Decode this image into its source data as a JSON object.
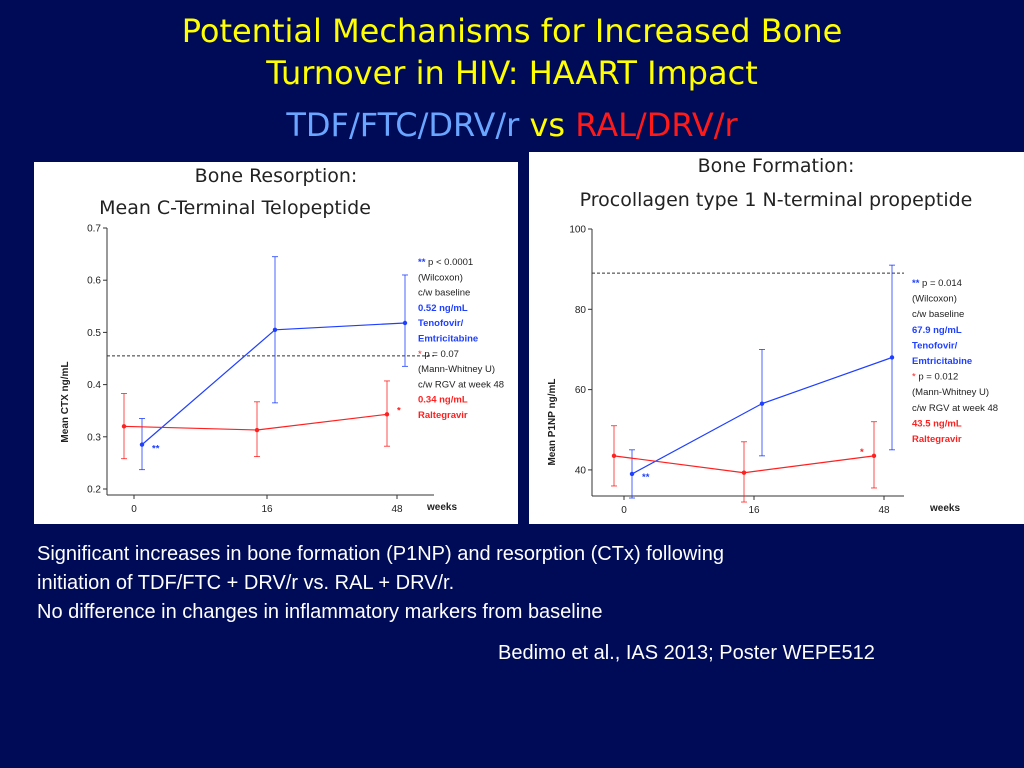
{
  "slide": {
    "title_line1": "Potential Mechanisms for Increased Bone",
    "title_line2": "Turnover in HIV: HAART Impact",
    "subtitle_tdf": "TDF/FTC/DRV/r",
    "subtitle_vs": "vs",
    "subtitle_ral": "RAL/DRV/r",
    "body_lines": [
      "Significant increases in bone formation (P1NP) and resorption (CTx) following",
      "initiation of TDF/FTC + DRV/r vs. RAL + DRV/r.",
      "No difference in changes in inflammatory markers from baseline"
    ],
    "citation": "Bedimo et al., IAS 2013; Poster WEPE512"
  },
  "colors": {
    "background": "#000b58",
    "title": "#ffff00",
    "tdf": "#6aa6ff",
    "ral": "#ff1a1a",
    "series_tdf": "#1f3fff",
    "series_ral": "#ff2020"
  },
  "chart_data": [
    {
      "type": "line",
      "title_line1": "Bone Resorption:",
      "title_line2": "Mean C-Terminal Telopeptide",
      "ylabel": "Mean CTX ng/mL",
      "xlabel": "weeks",
      "x": [
        0,
        16,
        48
      ],
      "x_tick_labels": [
        "0",
        "16",
        "48"
      ],
      "y_ticks": [
        "0.2",
        "0.3",
        "0.4",
        "0.5",
        "0.6",
        "0.7"
      ],
      "ylim": [
        0.2,
        0.7
      ],
      "reference_line": 0.455,
      "series": [
        {
          "key": "tdf",
          "values": [
            0.285,
            0.505,
            0.518
          ],
          "err_low": [
            0.237,
            0.365,
            0.435
          ],
          "err_high": [
            0.335,
            0.645,
            0.61
          ],
          "marker_label": "**"
        },
        {
          "key": "ral",
          "values": [
            0.32,
            0.313,
            0.343
          ],
          "err_low": [
            0.258,
            0.262,
            0.282
          ],
          "err_high": [
            0.383,
            0.367,
            0.407
          ],
          "marker_label": "*"
        }
      ],
      "annotations": [
        {
          "text": "**",
          "style": "blue bold",
          "inline": " p < 0.0001"
        },
        {
          "text": "(Wilcoxon)"
        },
        {
          "text": "c/w baseline"
        },
        {
          "text": "0.52 ng/mL",
          "style": "blue bold"
        },
        {
          "text": "Tenofovir/",
          "style": "blue bold"
        },
        {
          "text": "Emtricitabine",
          "style": "blue bold"
        },
        {
          "text": "*",
          "style": "red",
          "inline": " p = 0.07"
        },
        {
          "text": "(Mann-Whitney U)"
        },
        {
          "text": "c/w RGV at week 48"
        },
        {
          "text": "0.34 ng/mL",
          "style": "red bold"
        },
        {
          "text": "Raltegravir",
          "style": "red bold"
        }
      ]
    },
    {
      "type": "line",
      "title_line1": "Bone Formation:",
      "title_line2": "Procollagen type 1 N-terminal propeptide",
      "ylabel": "Mean P1NP ng/mL",
      "xlabel": "weeks",
      "x": [
        0,
        16,
        48
      ],
      "x_tick_labels": [
        "0",
        "16",
        "48"
      ],
      "y_ticks": [
        "40",
        "60",
        "80",
        "100"
      ],
      "ylim": [
        34,
        100
      ],
      "reference_line": 89,
      "series": [
        {
          "key": "tdf",
          "values": [
            39,
            56.5,
            68
          ],
          "err_low": [
            33,
            43.5,
            45
          ],
          "err_high": [
            45,
            70,
            91
          ],
          "marker_label": "**"
        },
        {
          "key": "ral",
          "values": [
            43.5,
            39.3,
            43.5
          ],
          "err_low": [
            36,
            32,
            35.5
          ],
          "err_high": [
            51,
            47,
            52
          ],
          "marker_label": "*"
        }
      ],
      "annotations": [
        {
          "text": "**",
          "style": "blue bold",
          "inline": " p = 0.014"
        },
        {
          "text": "(Wilcoxon)"
        },
        {
          "text": "c/w baseline"
        },
        {
          "text": "67.9 ng/mL",
          "style": "blue bold"
        },
        {
          "text": "Tenofovir/",
          "style": "blue bold"
        },
        {
          "text": "Emtricitabine",
          "style": "blue bold"
        },
        {
          "text": "*",
          "style": "red",
          "inline": " p = 0.012"
        },
        {
          "text": "(Mann-Whitney U)"
        },
        {
          "text": "c/w RGV at week 48"
        },
        {
          "text": "43.5 ng/mL",
          "style": "red bold"
        },
        {
          "text": "Raltegravir",
          "style": "red bold"
        }
      ]
    }
  ]
}
